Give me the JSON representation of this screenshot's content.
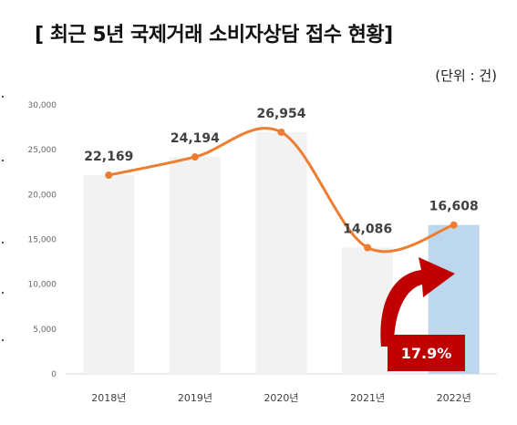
{
  "title": "[ 최근 5년 국제거래 소비자상담 접수 현황]",
  "unit": "(단위 : 건)",
  "growth_badge": "17.9%",
  "colors": {
    "bar": "#f2f2f2",
    "bar_highlight": "#bdd7ee",
    "line": "#ed7d31",
    "arrow": "#c00000",
    "badge": "#c00000"
  },
  "chart_data": {
    "type": "bar",
    "title": "[ 최근 5년 국제거래 소비자상담 접수 현황]",
    "xlabel": "",
    "ylabel": "",
    "categories": [
      "2018년",
      "2019년",
      "2020년",
      "2021년",
      "2022년"
    ],
    "values": [
      22169,
      24194,
      26954,
      14086,
      16608
    ],
    "data_labels": [
      "22,169",
      "24,194",
      "26,954",
      "14,086",
      "16,608"
    ],
    "highlight_index": 4,
    "overlay_line": true,
    "ylim": [
      0,
      30000
    ],
    "yticks": [
      0,
      5000,
      10000,
      15000,
      20000,
      25000,
      30000
    ],
    "ytick_labels": [
      "0",
      "5,000",
      "10,000",
      "15,000",
      "20,000",
      "25,000",
      "30,000"
    ],
    "grid": false,
    "annotation": "17.9%"
  }
}
